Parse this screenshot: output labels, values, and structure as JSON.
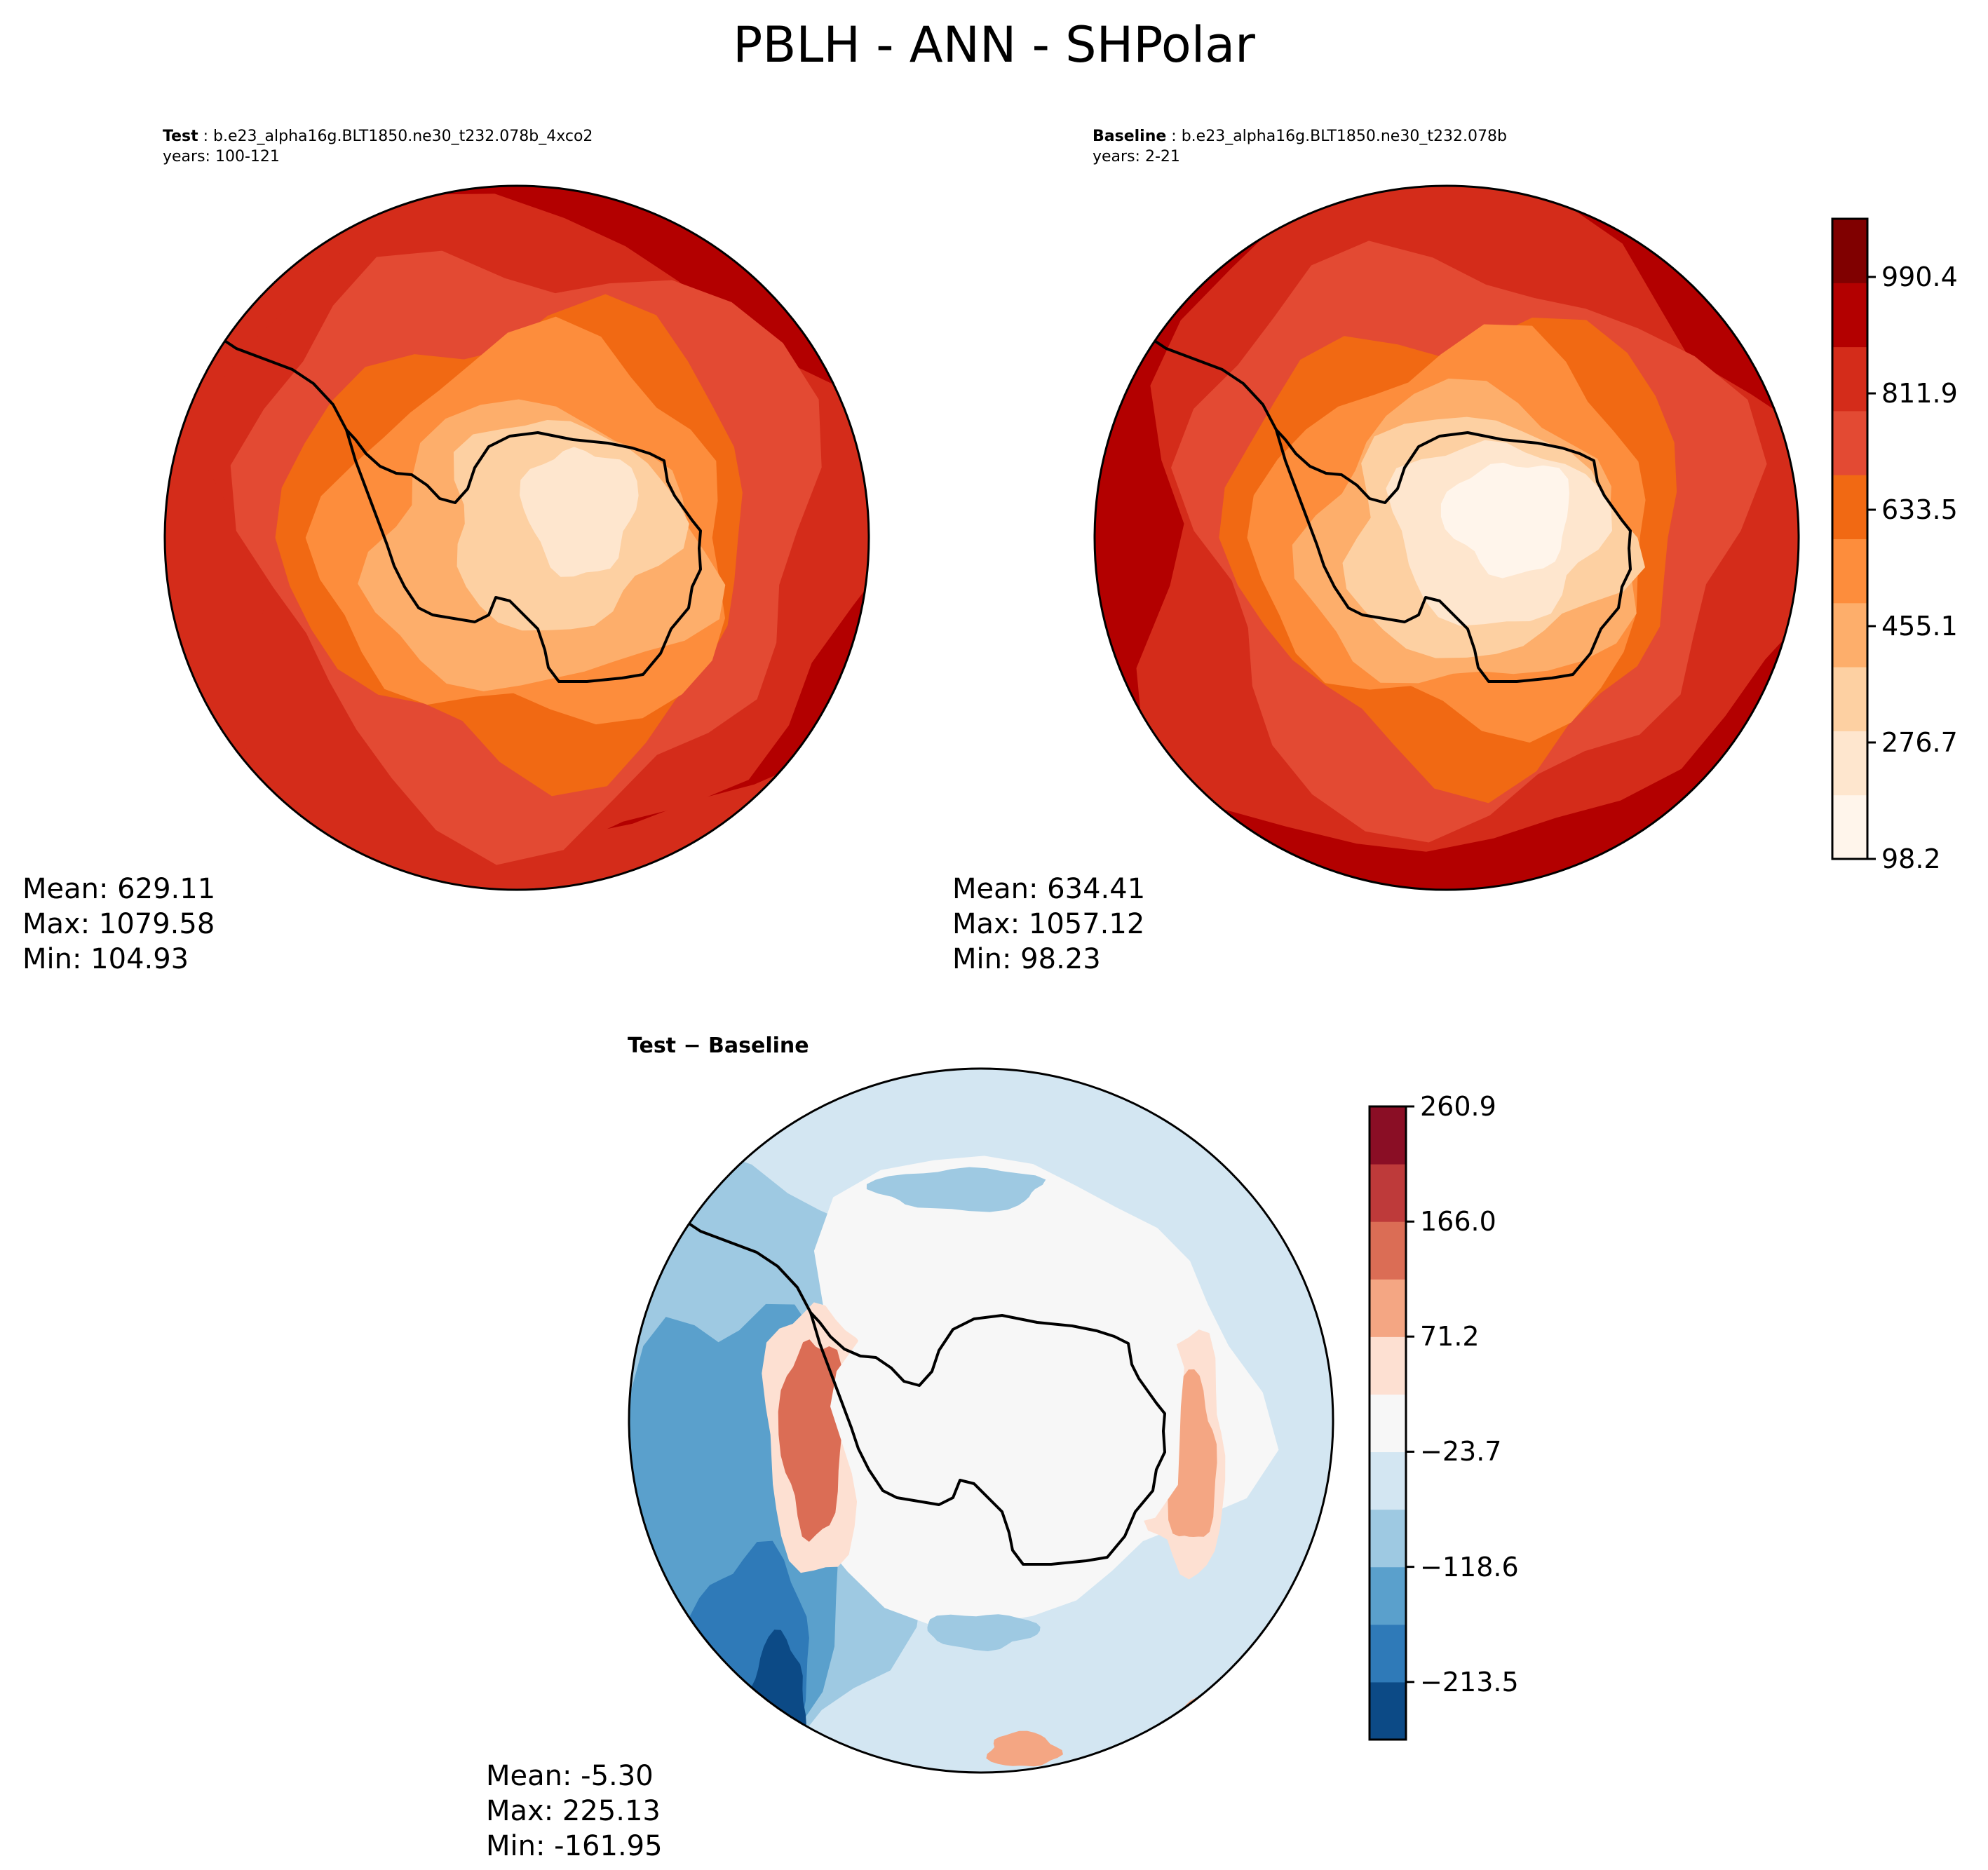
{
  "figure_title": "PBLH - ANN - SHPolar",
  "colors": {
    "test_baseline_levels": [
      "#fff5eb",
      "#fee6ce",
      "#fdd0a2",
      "#fdae6b",
      "#fd8d3c",
      "#f16913",
      "#e34a33",
      "#d42c1a",
      "#b30000",
      "#800000"
    ],
    "diff_levels": [
      "#0c4a86",
      "#2f7ab8",
      "#5aa0cc",
      "#9ec9e2",
      "#d3e6f2",
      "#f7f7f7",
      "#fde0d2",
      "#f4a683",
      "#db6d55",
      "#be3a3a",
      "#8a0e25"
    ],
    "coastline": "#000000"
  },
  "chart_data": [
    {
      "type": "heatmap",
      "panel": "test",
      "title_label": "Test",
      "title_case": "b.e23_alpha16g.BLT1850.ne30_t232.078b_4xco2",
      "years": "years: 100-121",
      "stats": {
        "mean": "Mean: 629.11",
        "max": "Max: 1079.58",
        "min": "Min: 104.93"
      }
    },
    {
      "type": "heatmap",
      "panel": "baseline",
      "title_label": "Baseline",
      "title_case": "b.e23_alpha16g.BLT1850.ne30_t232.078b",
      "years": "years: 2-21",
      "stats": {
        "mean": "Mean: 634.41",
        "max": "Max: 1057.12",
        "min": "Min: 98.23"
      },
      "colorbar": {
        "ticks": [
          "98.2",
          "276.7",
          "455.1",
          "633.5",
          "811.9",
          "990.4"
        ],
        "range": [
          98.2,
          1079.6
        ]
      }
    },
    {
      "type": "heatmap",
      "panel": "difference",
      "title": "Test − Baseline",
      "stats": {
        "mean": "Mean: -5.30",
        "max": "Max: 225.13",
        "min": "Min: -161.95"
      },
      "colorbar": {
        "ticks": [
          "260.9",
          "166.0",
          "71.2",
          "−23.7",
          "−118.6",
          "−213.5"
        ],
        "range": [
          -261.0,
          260.9
        ]
      }
    }
  ]
}
